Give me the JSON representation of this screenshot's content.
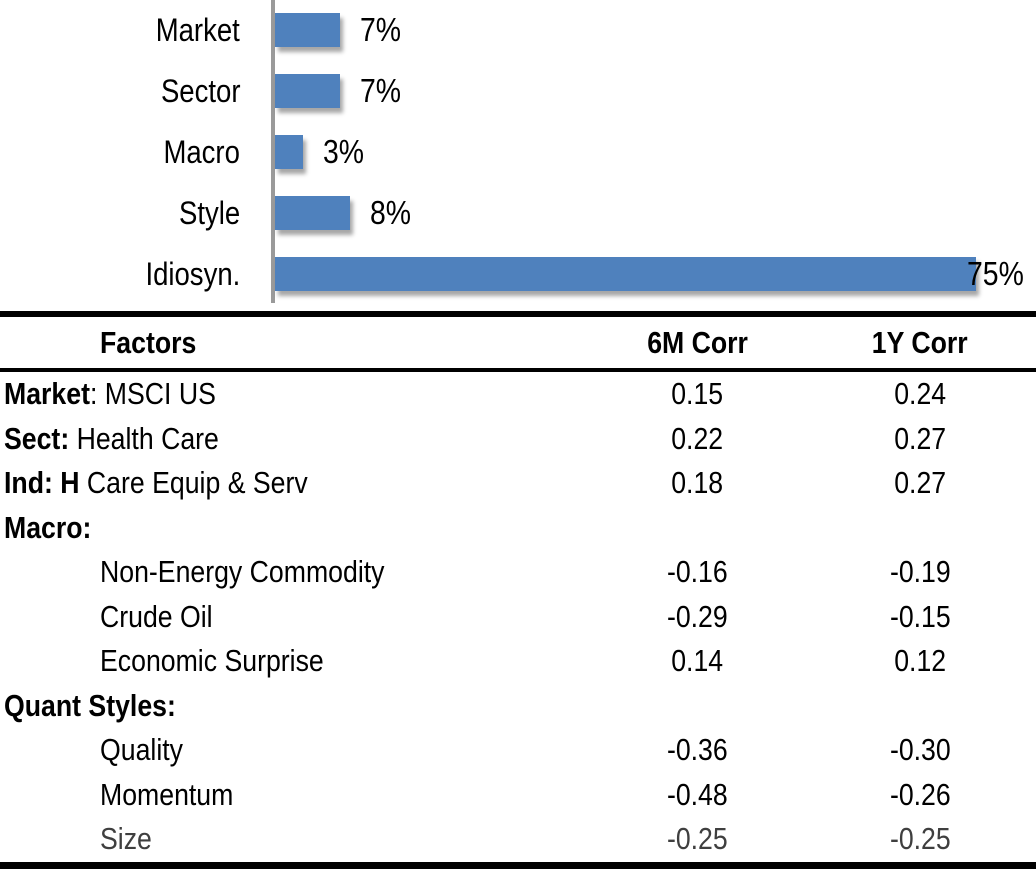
{
  "chart_data": [
    {
      "type": "bar",
      "orientation": "horizontal",
      "title": "",
      "xlabel": "",
      "ylabel": "",
      "categories": [
        "Market",
        "Sector",
        "Macro",
        "Style",
        "Idiosyn."
      ],
      "values": [
        7,
        7,
        3,
        8,
        75
      ],
      "value_labels": [
        "7%",
        "7%",
        "3%",
        "8%",
        "75%"
      ],
      "unit": "%",
      "xlim": [
        0,
        80
      ],
      "grid": false,
      "legend": false,
      "bar_color": "#4F81BD",
      "axis_color": "#9A9A9A"
    },
    {
      "type": "table",
      "columns": [
        "Factors",
        "6M Corr",
        "1Y Corr"
      ],
      "rows": [
        {
          "label_bold": "Market",
          "label_rest": ": MSCI US",
          "corr6m": "0.15",
          "corr1y": "0.24"
        },
        {
          "label_bold": "Sect:",
          "label_rest": " Health Care",
          "corr6m": "0.22",
          "corr1y": "0.27"
        },
        {
          "label_bold": "Ind: H",
          "label_rest": " Care Equip & Serv",
          "corr6m": "0.18",
          "corr1y": "0.27"
        },
        {
          "label_bold": "Macro:",
          "label_rest": "",
          "corr6m": "",
          "corr1y": ""
        },
        {
          "label_bold": "",
          "label_rest": "Non-Energy Commodity",
          "corr6m": "-0.16",
          "corr1y": "-0.19"
        },
        {
          "label_bold": "",
          "label_rest": "Crude Oil",
          "corr6m": "-0.29",
          "corr1y": "-0.15"
        },
        {
          "label_bold": "",
          "label_rest": "Economic Surprise",
          "corr6m": "0.14",
          "corr1y": "0.12"
        },
        {
          "label_bold": "Quant Styles:",
          "label_rest": "",
          "corr6m": "",
          "corr1y": ""
        },
        {
          "label_bold": "",
          "label_rest": "Quality",
          "corr6m": "-0.36",
          "corr1y": "-0.30"
        },
        {
          "label_bold": "",
          "label_rest": "Momentum",
          "corr6m": "-0.48",
          "corr1y": "-0.26"
        },
        {
          "label_bold": "",
          "label_rest": "Size",
          "corr6m": "-0.25",
          "corr1y": "-0.25"
        }
      ]
    }
  ]
}
